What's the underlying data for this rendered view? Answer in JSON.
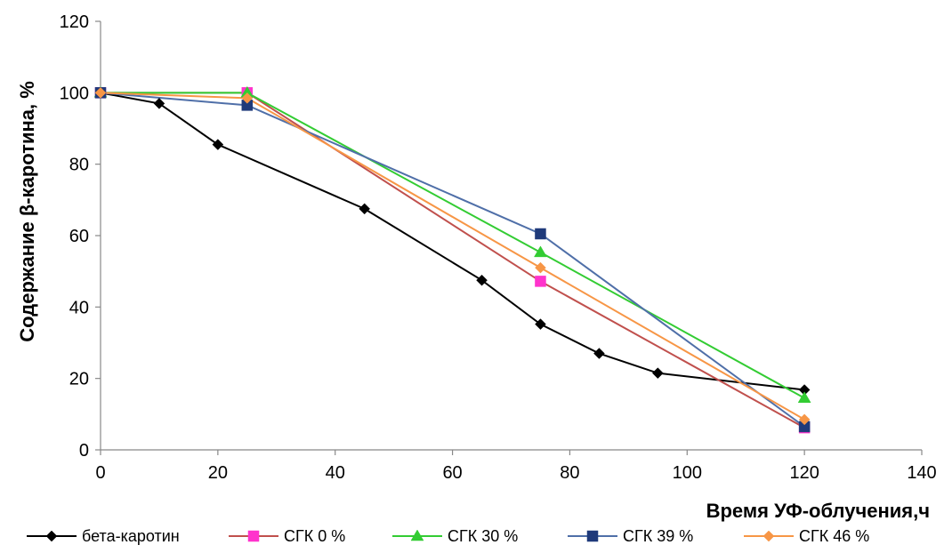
{
  "chart_data": {
    "type": "line",
    "title": "",
    "xlabel": "Время УФ-облучения,ч",
    "ylabel": "Содержание β-каротина, %",
    "xlim": [
      0,
      140
    ],
    "ylim": [
      0,
      120
    ],
    "xticks": [
      0,
      20,
      40,
      60,
      80,
      100,
      120,
      140
    ],
    "yticks": [
      0,
      20,
      40,
      60,
      80,
      100,
      120
    ],
    "grid": false,
    "legend_position": "bottom",
    "series": [
      {
        "name": "бета-каротин",
        "color": "#000000",
        "marker": "diamond",
        "x": [
          0,
          10,
          20,
          45,
          65,
          75,
          85,
          95,
          120
        ],
        "y": [
          100,
          97,
          85.5,
          67.5,
          47.5,
          35.2,
          27,
          21.5,
          16.8
        ]
      },
      {
        "name": "СГК 0 %",
        "color": "#c0504d",
        "marker_color": "#ff33cc",
        "marker": "square",
        "x": [
          0,
          25,
          75,
          120
        ],
        "y": [
          100,
          100,
          47.2,
          6.2
        ]
      },
      {
        "name": "СГК 30 %",
        "color": "#33cc33",
        "marker_color": "#33cc33",
        "marker": "triangle",
        "x": [
          0,
          25,
          75,
          120
        ],
        "y": [
          100,
          100,
          55.3,
          14.5
        ]
      },
      {
        "name": "СГК 39 %",
        "color": "#4f6fa8",
        "marker_color": "#1f3a7a",
        "marker": "square",
        "x": [
          0,
          25,
          75,
          120
        ],
        "y": [
          100,
          96.5,
          60.5,
          6.5
        ]
      },
      {
        "name": "СГК 46 %",
        "color": "#f79646",
        "marker_color": "#f79646",
        "marker": "diamond",
        "x": [
          0,
          25,
          75,
          120
        ],
        "y": [
          100,
          98.5,
          51,
          8.5
        ]
      }
    ]
  }
}
